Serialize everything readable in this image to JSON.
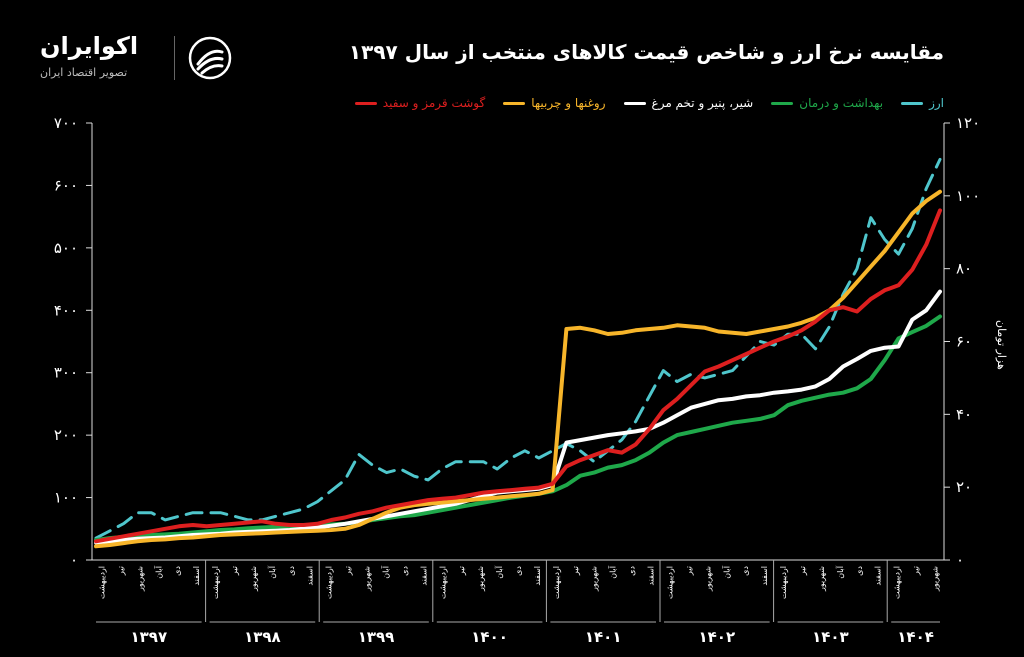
{
  "brand": {
    "name": "اکوایران",
    "tagline": "تصویر اقتصاد ایران"
  },
  "chart_data": {
    "type": "line",
    "title": "مقایسه نرخ ارز و شاخص قیمت کالاهای منتخب از سال ۱۳۹۷",
    "ylabel_right": "هزار تومان",
    "y_left": {
      "lim": [
        0,
        700
      ],
      "ticks": [
        "۰",
        "۱۰۰",
        "۲۰۰",
        "۳۰۰",
        "۴۰۰",
        "۵۰۰",
        "۶۰۰",
        "۷۰۰"
      ]
    },
    "y_right": {
      "lim": [
        0,
        120
      ],
      "ticks": [
        "۰",
        "۲۰",
        "۴۰",
        "۶۰",
        "۸۰",
        "۱۰۰",
        "۱۲۰"
      ]
    },
    "years": [
      "۱۳۹۷",
      "۱۳۹۸",
      "۱۳۹۹",
      "۱۴۰۰",
      "۱۴۰۱",
      "۱۴۰۲",
      "۱۴۰۳",
      "۱۴۰۴"
    ],
    "month_labels": [
      [
        "اردیبهشت",
        "تیر",
        "شهریور",
        "آبان",
        "دی",
        "اسفند"
      ],
      [
        "اردیبهشت",
        "تیر",
        "شهریور",
        "آبان",
        "دی",
        "اسفند"
      ],
      [
        "اردیبهشت",
        "تیر",
        "شهریور",
        "آبان",
        "دی",
        "اسفند"
      ],
      [
        "اردیبهشت",
        "تیر",
        "شهریور",
        "آبان",
        "دی",
        "اسفند"
      ],
      [
        "اردیبهشت",
        "تیر",
        "شهریور",
        "آبان",
        "دی",
        "اسفند"
      ],
      [
        "اردیبهشت",
        "تیر",
        "شهریور",
        "آبان",
        "دی",
        "اسفند"
      ],
      [
        "اردیبهشت",
        "تیر",
        "شهریور",
        "آبان",
        "دی",
        "اسفند"
      ],
      [
        "اردیبهشت",
        "تیر",
        "شهریور"
      ]
    ],
    "grid": false,
    "legend_position": "top",
    "series": [
      {
        "name": "ارز",
        "color": "#4fc6cc",
        "axis": "right",
        "dashed": true,
        "values": [
          6,
          8,
          10,
          13,
          13,
          11,
          12,
          13,
          13,
          13,
          12,
          11,
          11,
          12,
          13,
          14,
          16,
          19,
          22,
          29,
          26,
          24,
          25,
          23,
          22,
          25,
          27,
          27,
          27,
          25,
          28,
          30,
          28,
          30,
          32,
          30,
          27,
          30,
          33,
          38,
          45,
          52,
          49,
          51,
          50,
          51,
          52,
          56,
          60,
          59,
          62,
          62,
          58,
          64,
          73,
          80,
          94,
          88,
          84,
          91,
          102,
          110
        ]
      },
      {
        "name": "بهداشت و درمان",
        "color": "#1fa84a",
        "values": [
          32,
          35,
          37,
          39,
          40,
          41,
          42,
          44,
          46,
          48,
          49,
          51,
          52,
          53,
          54,
          55,
          56,
          57,
          58,
          61,
          64,
          67,
          70,
          72,
          76,
          80,
          84,
          88,
          92,
          96,
          100,
          103,
          106,
          110,
          120,
          135,
          140,
          148,
          152,
          160,
          172,
          188,
          200,
          205,
          210,
          215,
          220,
          223,
          226,
          232,
          248,
          255,
          260,
          265,
          268,
          275,
          290,
          320,
          355,
          365,
          375,
          390
        ]
      },
      {
        "name": "شیر، پنیر و تخم مرغ",
        "color": "#ffffff",
        "values": [
          28,
          30,
          32,
          34,
          35,
          36,
          38,
          40,
          41,
          42,
          44,
          45,
          46,
          47,
          48,
          50,
          52,
          55,
          58,
          62,
          66,
          70,
          74,
          78,
          82,
          86,
          90,
          96,
          102,
          108,
          110,
          112,
          114,
          120,
          188,
          192,
          196,
          200,
          203,
          206,
          210,
          220,
          232,
          244,
          250,
          256,
          258,
          262,
          264,
          268,
          270,
          273,
          278,
          290,
          310,
          322,
          335,
          340,
          342,
          385,
          400,
          430
        ]
      },
      {
        "name": "روغنها و چربیها",
        "color": "#f7b52a",
        "values": [
          22,
          24,
          27,
          30,
          32,
          33,
          35,
          36,
          38,
          40,
          41,
          42,
          43,
          44,
          45,
          46,
          47,
          48,
          50,
          56,
          66,
          76,
          84,
          88,
          90,
          92,
          94,
          96,
          98,
          100,
          102,
          104,
          106,
          112,
          370,
          372,
          368,
          362,
          364,
          368,
          370,
          372,
          376,
          374,
          372,
          366,
          364,
          362,
          366,
          370,
          374,
          380,
          388,
          400,
          420,
          445,
          470,
          495,
          525,
          555,
          575,
          590
        ]
      },
      {
        "name": "گوشت قرمز و سفید",
        "color": "#dd1f1f",
        "values": [
          30,
          34,
          38,
          42,
          46,
          50,
          54,
          56,
          54,
          56,
          58,
          60,
          62,
          58,
          56,
          56,
          58,
          64,
          68,
          74,
          78,
          84,
          88,
          92,
          96,
          98,
          100,
          104,
          108,
          110,
          112,
          114,
          116,
          122,
          150,
          160,
          168,
          176,
          172,
          185,
          210,
          240,
          258,
          280,
          302,
          310,
          320,
          330,
          340,
          350,
          358,
          368,
          382,
          400,
          405,
          398,
          418,
          432,
          440,
          465,
          505,
          560
        ]
      }
    ]
  }
}
